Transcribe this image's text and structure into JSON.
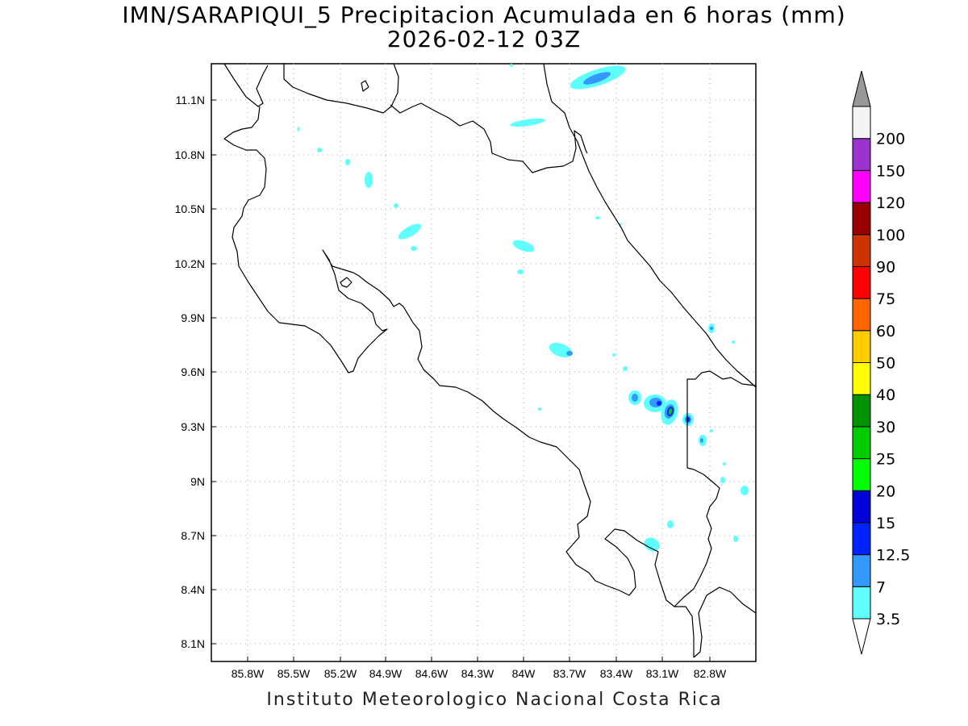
{
  "header": {
    "title_line1": "IMN/SARAPIQUI_5 Precipitacion Acumulada en 6 horas (mm)",
    "title_line2": "2026-02-12 03Z"
  },
  "footer": {
    "credit": "Instituto Meteorologico Nacional Costa Rica"
  },
  "map": {
    "lon_range": [
      -86.0,
      -82.6
    ],
    "lat_range": [
      8.0,
      11.2
    ],
    "lon_ticks": [
      "85.8W",
      "85.5W",
      "85.2W",
      "84.9W",
      "84.6W",
      "84.3W",
      "84W",
      "83.7W",
      "83.4W",
      "83.1W",
      "82.8W"
    ],
    "lat_ticks": [
      "11.1N",
      "10.8N",
      "10.5N",
      "10.2N",
      "9.9N",
      "9.6N",
      "9.3N",
      "9N",
      "8.7N",
      "8.4N",
      "8.1N"
    ],
    "grid": "dotted",
    "coastline_color": "#000000"
  },
  "colorbar": {
    "labels": [
      "3.5",
      "7",
      "12.5",
      "15",
      "20",
      "25",
      "30",
      "40",
      "50",
      "60",
      "75",
      "90",
      "100",
      "120",
      "150",
      "200"
    ],
    "colors": [
      "#5ffffe",
      "#3399ff",
      "#0022ff",
      "#0000d8",
      "#00ff00",
      "#00cc00",
      "#009100",
      "#ffff00",
      "#ffcc00",
      "#ff6600",
      "#ff0000",
      "#cc3300",
      "#990000",
      "#ff00ff",
      "#9933cc",
      "#f4f4f4"
    ],
    "low_arrow_color": "#ffffff",
    "high_arrow_color": "#999999"
  }
}
